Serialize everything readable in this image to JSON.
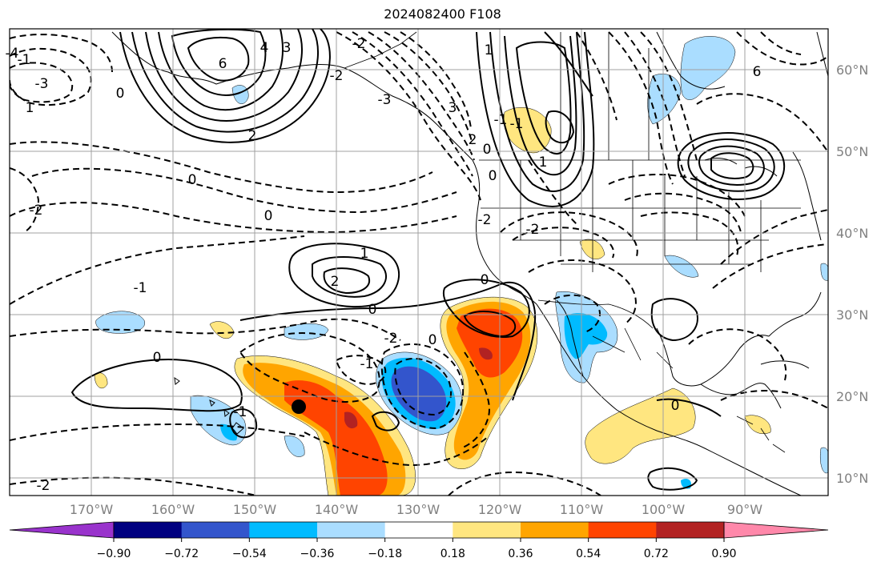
{
  "title": "2024082400 F108",
  "axes": {
    "longitude_labels": [
      "170°W",
      "160°W",
      "150°W",
      "140°W",
      "130°W",
      "120°W",
      "110°W",
      "100°W",
      "90°W"
    ],
    "latitude_labels": [
      "60°N",
      "50°N",
      "40°N",
      "30°N",
      "20°N",
      "10°N"
    ],
    "grid": true
  },
  "colorbar": {
    "tick_labels": [
      "−0.90",
      "−0.72",
      "−0.54",
      "−0.36",
      "−0.18",
      "0.18",
      "0.36",
      "0.54",
      "0.72",
      "0.90"
    ],
    "colors": [
      "#9933cc",
      "#000080",
      "#3355cc",
      "#00bbff",
      "#aaddff",
      "#ffffff",
      "#ffe680",
      "#ffa500",
      "#ff4400",
      "#b22222",
      "#ff88aa"
    ],
    "extend": "both"
  },
  "contour_labels": [
    "6",
    "4",
    "3",
    "0",
    "2",
    "-2",
    "-1",
    "1",
    "-3",
    "-4",
    "6",
    "3",
    "2",
    "0",
    "-1",
    "1",
    "-2",
    "-1",
    "0",
    "1",
    "-2",
    "-3",
    "0",
    "0",
    "-1",
    "-2",
    "1",
    "2",
    "0",
    "-2",
    "0",
    "0",
    "-2",
    "-1",
    "0",
    "-1",
    "0",
    "-2"
  ],
  "marker": {
    "name": "storm-center",
    "color": "#000000"
  }
}
